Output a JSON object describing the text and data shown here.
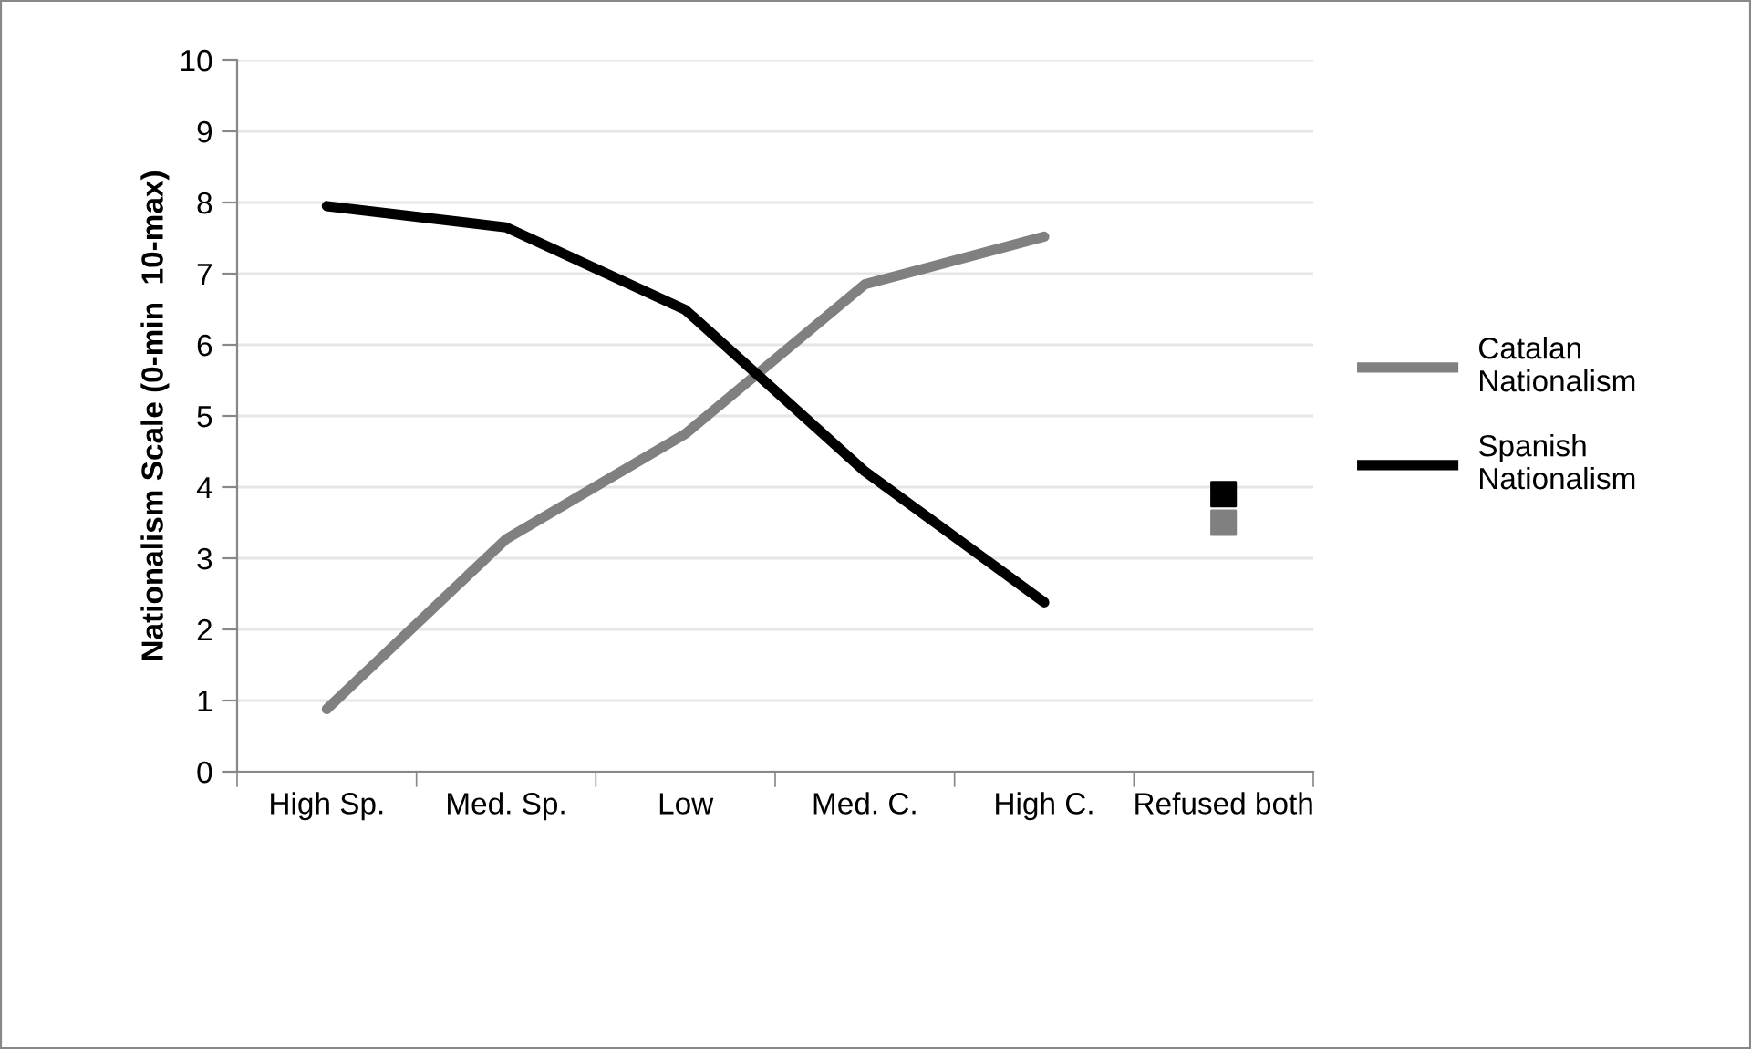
{
  "chart_data": {
    "type": "line",
    "ylabel": "Nationalism Scale (0-min  10-max)",
    "categories": [
      "High Sp.",
      "Med. Sp.",
      "Low",
      "Med. C.",
      "High C.",
      "Refused both"
    ],
    "series": [
      {
        "name": "Catalan Nationalism",
        "color": "#808080",
        "values": [
          0.88,
          3.27,
          4.75,
          6.85,
          7.52,
          null
        ]
      },
      {
        "name": "Spanish Nationalism",
        "color": "#000000",
        "values": [
          7.95,
          7.65,
          6.49,
          4.22,
          2.38,
          null
        ]
      },
      {
        "type": "scatter",
        "color": "#808080",
        "marker": "square",
        "values": [
          null,
          null,
          null,
          null,
          null,
          3.5
        ]
      },
      {
        "type": "scatter",
        "color": "#000000",
        "marker": "square",
        "values": [
          null,
          null,
          null,
          null,
          null,
          3.9
        ]
      }
    ],
    "ylim": [
      0,
      10
    ],
    "yticks": [
      0,
      1,
      2,
      3,
      4,
      5,
      6,
      7,
      8,
      9,
      10
    ],
    "grid": "y",
    "legend": "right",
    "marker": "none",
    "line_style": "solid"
  }
}
